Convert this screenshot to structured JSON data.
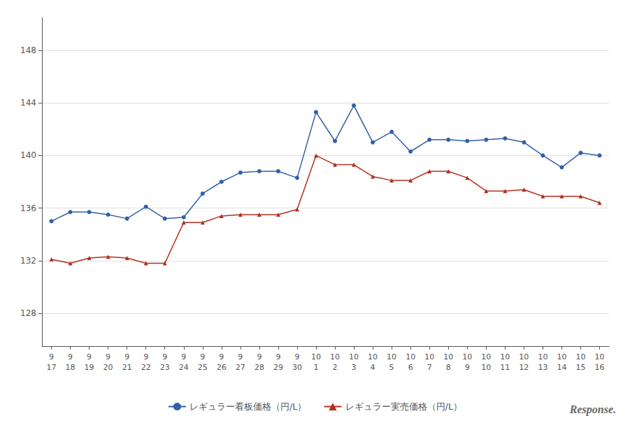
{
  "chart_data": {
    "type": "line",
    "categories": [
      "9\n17",
      "9\n18",
      "9\n19",
      "9\n20",
      "9\n21",
      "9\n22",
      "9\n23",
      "9\n24",
      "9\n25",
      "9\n26",
      "9\n27",
      "9\n28",
      "9\n29",
      "9\n30",
      "10\n1",
      "10\n2",
      "10\n3",
      "10\n4",
      "10\n5",
      "10\n6",
      "10\n7",
      "10\n8",
      "10\n9",
      "10\n10",
      "10\n11",
      "10\n12",
      "10\n13",
      "10\n14",
      "10\n15",
      "10\n16"
    ],
    "series": [
      {
        "name": "レギュラー看板価格（円/L）",
        "color": "#3060a8",
        "marker": "circle",
        "values": [
          135.0,
          135.7,
          135.7,
          135.5,
          135.2,
          136.1,
          135.2,
          135.3,
          137.1,
          138.0,
          138.7,
          138.8,
          138.8,
          138.3,
          143.3,
          141.1,
          143.8,
          141.0,
          141.8,
          140.3,
          141.2,
          141.2,
          141.1,
          141.2,
          141.3,
          141.0,
          140.0,
          139.1,
          140.2,
          140.0
        ]
      },
      {
        "name": "レギュラー実売価格（円/L）",
        "color": "#b03020",
        "marker": "triangle",
        "values": [
          132.1,
          131.8,
          132.2,
          132.3,
          132.2,
          131.8,
          131.8,
          134.9,
          134.9,
          135.4,
          135.5,
          135.5,
          135.5,
          135.9,
          140.0,
          139.3,
          139.3,
          138.4,
          138.1,
          138.1,
          138.8,
          138.8,
          138.3,
          137.3,
          137.3,
          137.4,
          136.9,
          136.9,
          136.9,
          136.4
        ]
      }
    ],
    "ylim": [
      125.5,
      150.5
    ],
    "yticks": [
      128,
      132,
      136,
      140,
      144,
      148
    ],
    "grid": true,
    "legend": "bottom",
    "annotations": [
      "Response."
    ]
  }
}
